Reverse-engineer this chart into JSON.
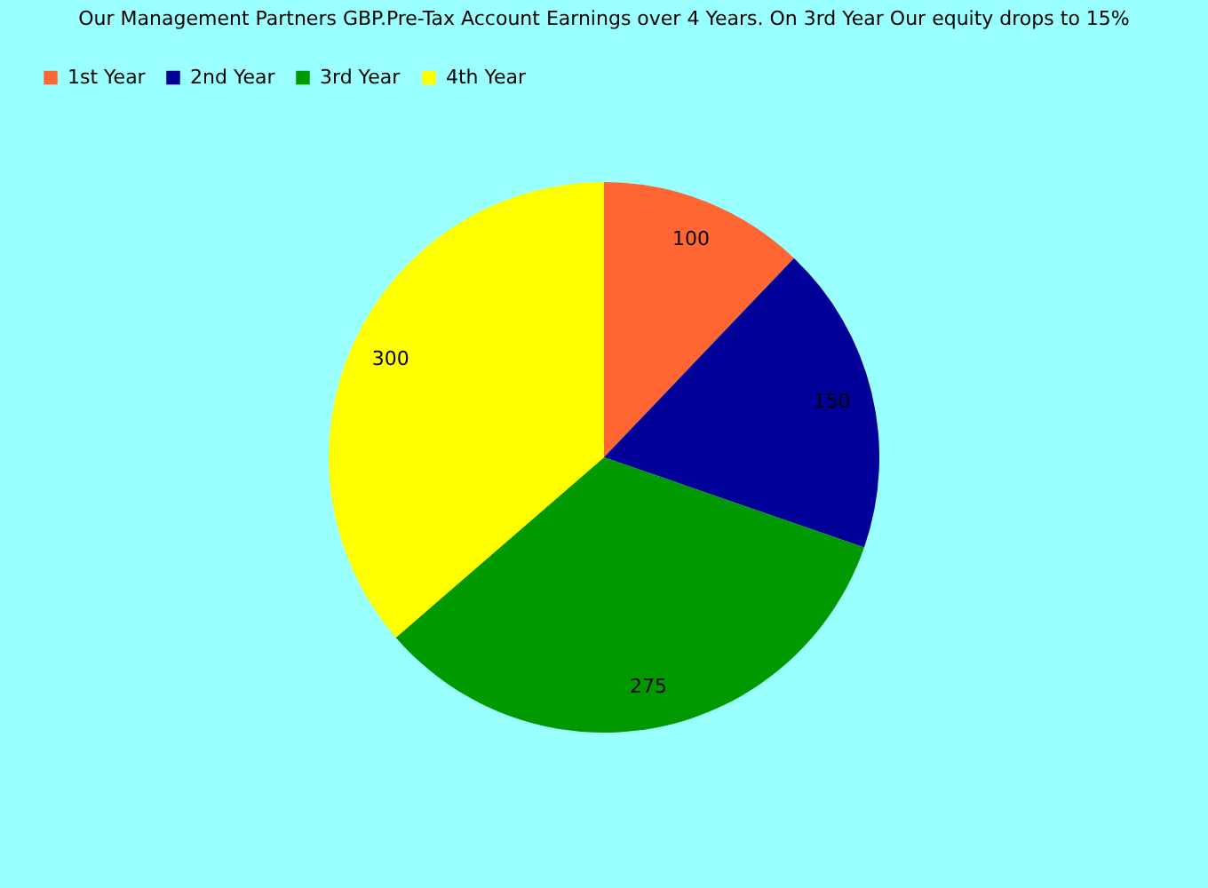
{
  "chart_data": {
    "type": "pie",
    "title": "Our Management Partners GBP.Pre-Tax Account Earnings over 4 Years. On 3rd Year Our equity drops to 15%",
    "categories": [
      "1st Year",
      "2nd Year",
      "3rd Year",
      "4th Year"
    ],
    "values": [
      100,
      150,
      275,
      300
    ],
    "colors": [
      "#ff6633",
      "#000099",
      "#009900",
      "#ffff00"
    ],
    "data_labels": true,
    "legend": "top left"
  }
}
